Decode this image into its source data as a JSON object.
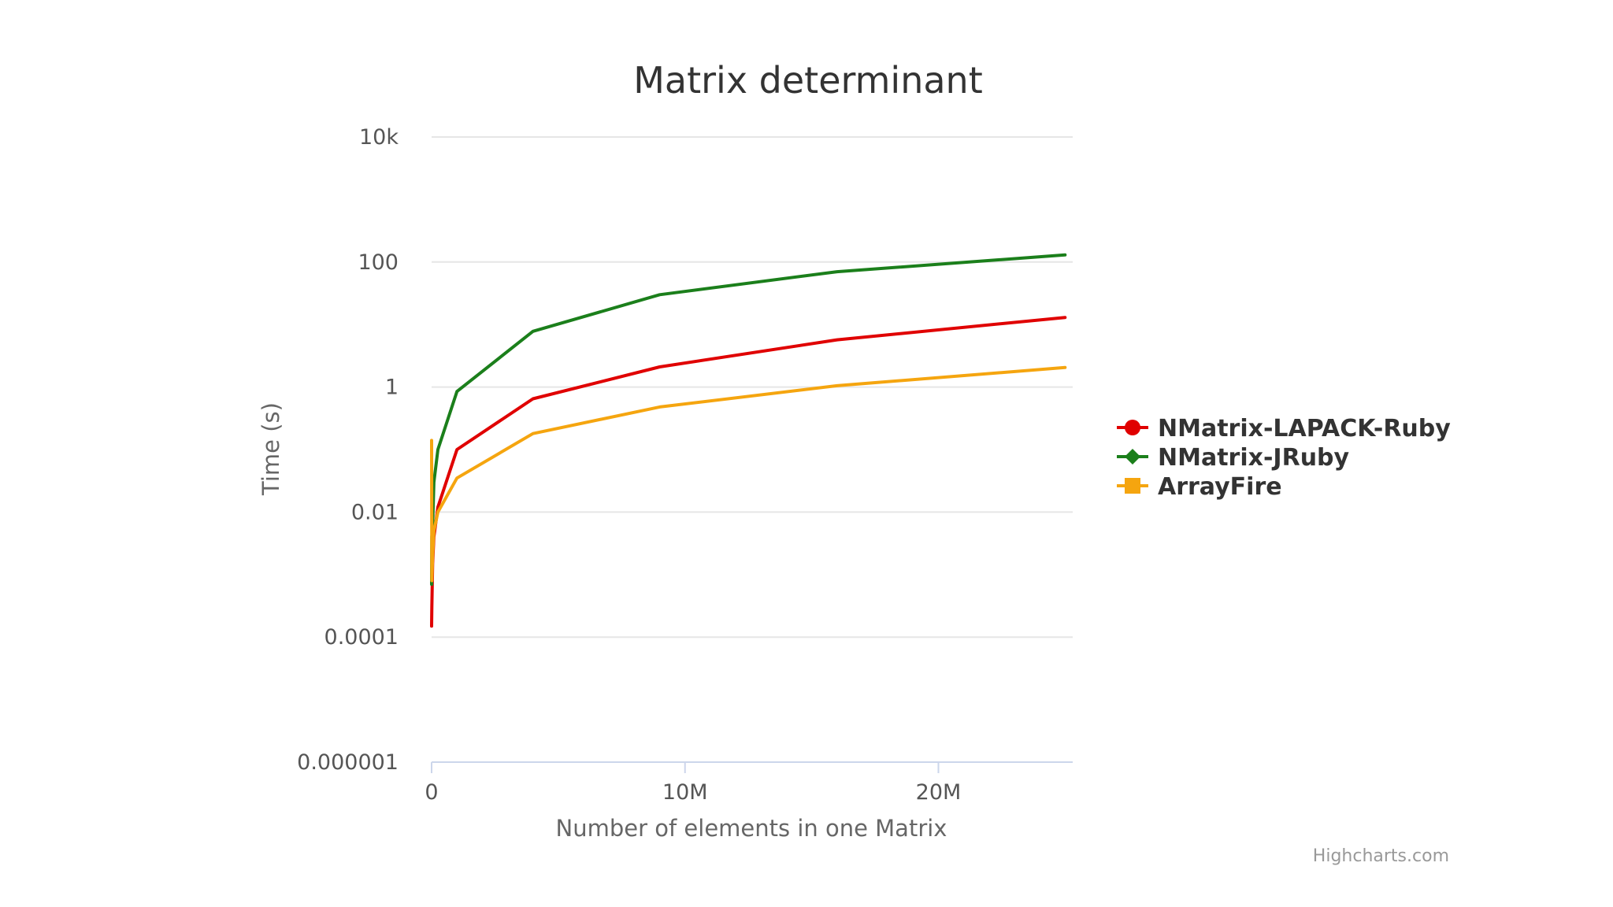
{
  "chart_data": {
    "type": "line",
    "title": "Matrix determinant",
    "xlabel": "Number of elements in one Matrix",
    "ylabel": "Time (s)",
    "yscale": "log",
    "xlim": [
      0,
      25300000
    ],
    "ylim": [
      1e-06,
      10000
    ],
    "y_ticks": [
      {
        "value": 10000,
        "label": "10k"
      },
      {
        "value": 100,
        "label": "100"
      },
      {
        "value": 1,
        "label": "1"
      },
      {
        "value": 0.01,
        "label": "0.01"
      },
      {
        "value": 0.0001,
        "label": "0.0001"
      },
      {
        "value": 1e-06,
        "label": "0.000001"
      }
    ],
    "x_ticks": [
      {
        "value": 0,
        "label": "0"
      },
      {
        "value": 10000000,
        "label": "10M"
      },
      {
        "value": 20000000,
        "label": "20M"
      }
    ],
    "series": [
      {
        "name": "NMatrix-LAPACK-Ruby",
        "color": "#e00000",
        "marker": "circle",
        "x": [
          100,
          10000,
          40000,
          90000,
          250000,
          1000000,
          4000000,
          9000000,
          16000000,
          25000000
        ],
        "y": [
          0.00015,
          0.0003,
          0.0015,
          0.004,
          0.012,
          0.1,
          0.65,
          2.1,
          5.7,
          13
        ]
      },
      {
        "name": "NMatrix-JRuby",
        "color": "#1b7f1b",
        "marker": "diamond",
        "x": [
          100,
          10000,
          40000,
          90000,
          250000,
          1000000,
          4000000,
          9000000,
          16000000,
          25000000
        ],
        "y": [
          0.0007,
          0.004,
          0.006,
          0.03,
          0.1,
          0.85,
          7.8,
          30,
          70,
          130
        ]
      },
      {
        "name": "ArrayFire",
        "color": "#f5a50f",
        "marker": "square",
        "x": [
          100,
          10000,
          40000,
          90000,
          250000,
          1000000,
          4000000,
          9000000,
          16000000,
          25000000
        ],
        "y": [
          0.14,
          0.0008,
          0.002,
          0.005,
          0.01,
          0.035,
          0.18,
          0.48,
          1.05,
          2.05
        ]
      }
    ]
  },
  "credits": "Highcharts.com"
}
